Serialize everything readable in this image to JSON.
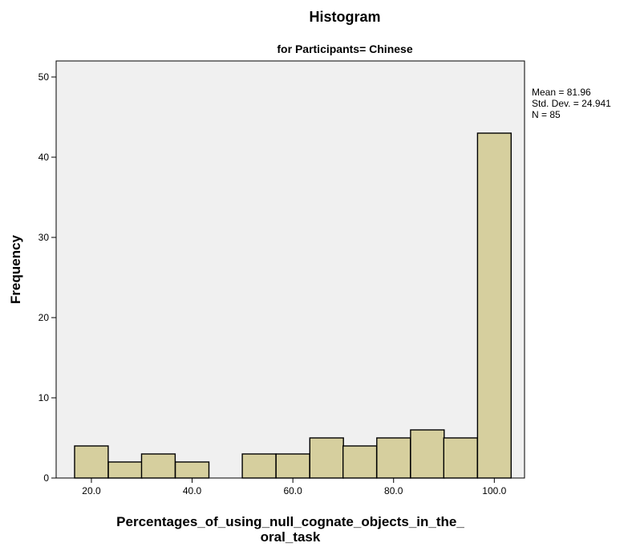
{
  "chart_data": {
    "type": "bar",
    "title": "Histogram",
    "subtitle": "for Participants= Chinese",
    "xlabel_line1": "Percentages_of_using_null_cognate_objects_in_the_",
    "xlabel_line2": "oral_task",
    "ylabel": "Frequency",
    "xlim": [
      13,
      106
    ],
    "ylim": [
      0,
      52
    ],
    "x_ticks": [
      20,
      40,
      60,
      80,
      100
    ],
    "x_tick_labels": [
      "20.0",
      "40.0",
      "60.0",
      "80.0",
      "100.0"
    ],
    "y_ticks": [
      0,
      10,
      20,
      30,
      40,
      50
    ],
    "y_tick_labels": [
      "0",
      "10",
      "20",
      "30",
      "40",
      "50"
    ],
    "bin_width": 6.67,
    "bins": [
      {
        "center": 20.0,
        "value": 4
      },
      {
        "center": 26.7,
        "value": 2
      },
      {
        "center": 33.3,
        "value": 3
      },
      {
        "center": 40.0,
        "value": 2
      },
      {
        "center": 46.7,
        "value": 0
      },
      {
        "center": 53.3,
        "value": 3
      },
      {
        "center": 60.0,
        "value": 3
      },
      {
        "center": 66.7,
        "value": 5
      },
      {
        "center": 73.3,
        "value": 4
      },
      {
        "center": 80.0,
        "value": 5
      },
      {
        "center": 86.7,
        "value": 6
      },
      {
        "center": 93.3,
        "value": 5
      },
      {
        "center": 100.0,
        "value": 43
      }
    ],
    "stats": {
      "mean": "Mean = 81.96",
      "sd": "Std. Dev. = 24.941",
      "n": "N = 85"
    },
    "colors": {
      "bar_fill": "#d6cf9e",
      "bar_stroke": "#000000",
      "plot_background": "#f0f0f0"
    },
    "grid": false
  }
}
